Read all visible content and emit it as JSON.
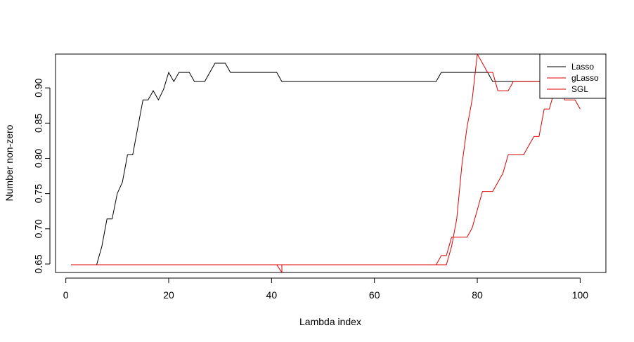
{
  "chart_data": {
    "type": "line",
    "title": "",
    "xlabel": "Lambda index",
    "ylabel": "Number non-zero",
    "xlim": [
      -2,
      105
    ],
    "ylim": [
      0.638,
      0.948
    ],
    "x_ticks": [
      0,
      20,
      40,
      60,
      80,
      100
    ],
    "y_ticks": [
      0.65,
      0.7,
      0.75,
      0.8,
      0.85,
      0.9
    ],
    "y_tick_labels": [
      "0.65",
      "0.70",
      "0.75",
      "0.80",
      "0.85",
      "0.90"
    ],
    "grid": false,
    "legend_position": "top-right",
    "series": [
      {
        "name": "Lasso",
        "color": "#000000",
        "points": [
          [
            1,
            0.649
          ],
          [
            6,
            0.649
          ],
          [
            7,
            0.675
          ],
          [
            8,
            0.714
          ],
          [
            9,
            0.714
          ],
          [
            10,
            0.75
          ],
          [
            11,
            0.766
          ],
          [
            12,
            0.805
          ],
          [
            13,
            0.805
          ],
          [
            14,
            0.844
          ],
          [
            15,
            0.883
          ],
          [
            16,
            0.883
          ],
          [
            17,
            0.896
          ],
          [
            18,
            0.883
          ],
          [
            19,
            0.898
          ],
          [
            20,
            0.922
          ],
          [
            21,
            0.909
          ],
          [
            22,
            0.922
          ],
          [
            24,
            0.922
          ],
          [
            25,
            0.909
          ],
          [
            27,
            0.909
          ],
          [
            28,
            0.922
          ],
          [
            29,
            0.935
          ],
          [
            31,
            0.935
          ],
          [
            32,
            0.922
          ],
          [
            41,
            0.922
          ],
          [
            42,
            0.909
          ],
          [
            72,
            0.909
          ],
          [
            73,
            0.922
          ],
          [
            82,
            0.922
          ],
          [
            83,
            0.909
          ],
          [
            86,
            0.909
          ],
          [
            87,
            0.909
          ],
          [
            100,
            0.909
          ]
        ]
      },
      {
        "name": "gLasso",
        "color": "#dd0000",
        "points": [
          [
            1,
            0.649
          ],
          [
            74,
            0.649
          ],
          [
            75,
            0.675
          ],
          [
            76,
            0.714
          ],
          [
            77,
            0.79
          ],
          [
            78,
            0.844
          ],
          [
            79,
            0.883
          ],
          [
            80,
            0.948
          ],
          [
            81,
            0.935
          ],
          [
            82,
            0.922
          ],
          [
            83,
            0.922
          ],
          [
            84,
            0.896
          ],
          [
            86,
            0.896
          ],
          [
            87,
            0.909
          ],
          [
            94,
            0.909
          ],
          [
            95,
            0.896
          ],
          [
            96,
            0.896
          ],
          [
            97,
            0.883
          ],
          [
            99,
            0.883
          ],
          [
            100,
            0.87
          ]
        ]
      },
      {
        "name": "SGL",
        "color": "#dd0000",
        "points": [
          [
            1,
            0.649
          ],
          [
            41,
            0.649
          ],
          [
            42,
            0.638
          ],
          [
            42,
            0.649
          ],
          [
            72,
            0.649
          ],
          [
            73,
            0.662
          ],
          [
            74,
            0.662
          ],
          [
            75,
            0.688
          ],
          [
            78,
            0.688
          ],
          [
            79,
            0.701
          ],
          [
            80,
            0.727
          ],
          [
            81,
            0.753
          ],
          [
            83,
            0.753
          ],
          [
            84,
            0.766
          ],
          [
            85,
            0.779
          ],
          [
            86,
            0.805
          ],
          [
            89,
            0.805
          ],
          [
            90,
            0.818
          ],
          [
            91,
            0.831
          ],
          [
            92,
            0.831
          ],
          [
            93,
            0.87
          ],
          [
            94,
            0.87
          ],
          [
            95,
            0.896
          ],
          [
            96,
            0.909
          ],
          [
            100,
            0.909
          ]
        ]
      }
    ]
  }
}
